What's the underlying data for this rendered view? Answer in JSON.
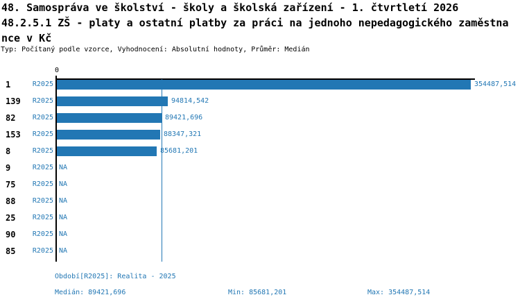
{
  "title": {
    "line1": "48. Samospráva ve školství - školy a školská zařízení - 1. čtvrtletí 2026",
    "line2": "48.2.5.1 ZŠ - platy a ostatní platby za práci na jednoho nepedagogického zaměstna",
    "line3": "nce v Kč",
    "meta": "Typ: Počítaný podle vzorce, Vyhodnocení: Absolutní hodnoty, Průměr: Medián"
  },
  "chart_data": {
    "type": "bar",
    "orientation": "horizontal",
    "title": "48.2.5.1 ZŠ - platy a ostatní platby za práci na jednoho nepedagogického zaměstnance v Kč",
    "categories": [
      "1",
      "139",
      "82",
      "153",
      "8",
      "9",
      "75",
      "88",
      "25",
      "90",
      "85"
    ],
    "series": [
      {
        "name": "R2025",
        "values": [
          354487.514,
          94814.542,
          89421.696,
          88347.321,
          85681.201,
          null,
          null,
          null,
          null,
          null,
          null
        ],
        "labels": [
          "354487,514",
          "94814,542",
          "89421,696",
          "88347,321",
          "85681,201",
          "NA",
          "NA",
          "NA",
          "NA",
          "NA",
          "NA"
        ]
      }
    ],
    "xlim": [
      0,
      354487.514
    ],
    "axis_zero_label": "0",
    "median_line_value": 89421.696,
    "na_label": "NA",
    "grid": false,
    "legend": "none"
  },
  "footer": {
    "period": "Období[R2025]: Realita - 2025",
    "median": "Medián: 89421,696",
    "min": "Min: 85681,201",
    "max": "Max: 354487,514"
  },
  "colors": {
    "accent_blue": "#2277b4",
    "axis_black": "#000000",
    "background": "#ffffff"
  }
}
